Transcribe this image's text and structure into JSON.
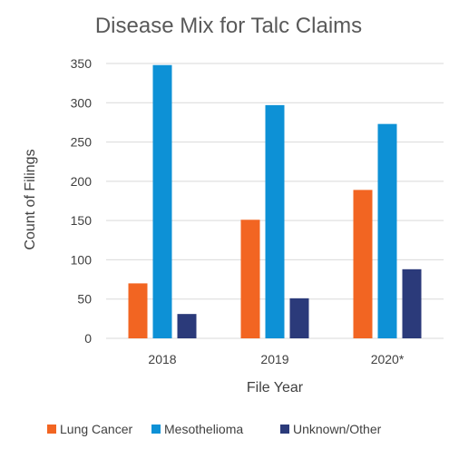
{
  "chart_data": {
    "type": "bar",
    "title": "Disease Mix for Talc Claims",
    "xlabel": "File Year",
    "ylabel": "Count of Filings",
    "categories": [
      "2018",
      "2019",
      "2020*"
    ],
    "series": [
      {
        "name": "Lung Cancer",
        "color": "#f26522",
        "values": [
          70,
          151,
          189
        ]
      },
      {
        "name": "Mesothelioma",
        "color": "#0d91d6",
        "values": [
          348,
          297,
          273
        ]
      },
      {
        "name": "Unknown/Other",
        "color": "#2b3a7a",
        "values": [
          31,
          51,
          88
        ]
      }
    ],
    "ylim": [
      0,
      350
    ],
    "yticks": [
      "0",
      "50",
      "100",
      "150",
      "200",
      "250",
      "300",
      "350"
    ],
    "grid": true,
    "legend_position": "bottom"
  }
}
